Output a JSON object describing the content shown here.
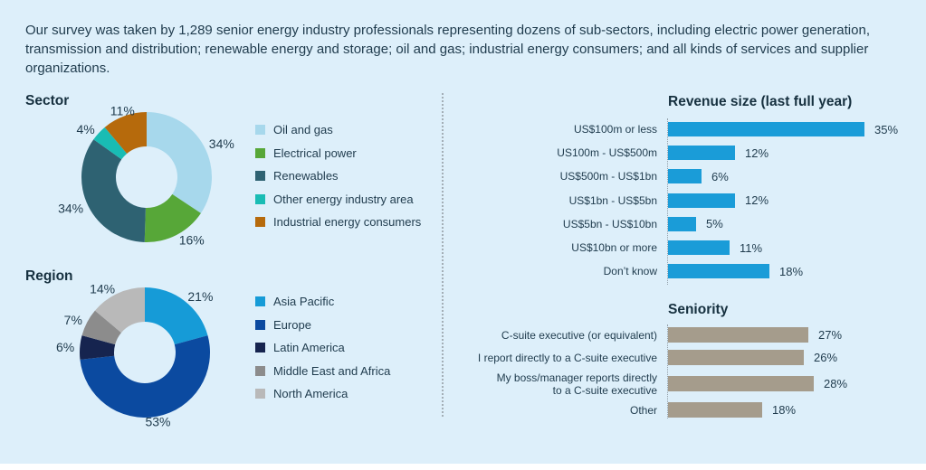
{
  "intro": "Our survey was taken by 1,289 senior energy industry professionals representing dozens of sub-sectors, including electric power generation, transmission and distribution; renewable energy and storage; oil and gas; industrial energy consumers; and all kinds of services and supplier organizations.",
  "colors": {
    "background": "#ddeffa",
    "text": "#1f3b4d",
    "revenue_bar": "#1a9cd8",
    "seniority_bar": "#a59c8c",
    "divider": "#a3aeb6"
  },
  "chart_data": [
    {
      "id": "sector",
      "type": "pie",
      "donut": true,
      "title": "Sector",
      "legend_position": "right",
      "value_suffix": "%",
      "segments": [
        {
          "label": "Oil and gas",
          "value": 34,
          "color": "#a7d8ec"
        },
        {
          "label": "Electrical power",
          "value": 16,
          "color": "#57a738"
        },
        {
          "label": "Renewables",
          "value": 34,
          "color": "#2e6272"
        },
        {
          "label": "Other energy industry area",
          "value": 4,
          "color": "#19bcb4"
        },
        {
          "label": "Industrial energy consumers",
          "value": 11,
          "color": "#b66a0c"
        }
      ]
    },
    {
      "id": "region",
      "type": "pie",
      "donut": true,
      "title": "Region",
      "legend_position": "right",
      "value_suffix": "%",
      "segments": [
        {
          "label": "Asia Pacific",
          "value": 21,
          "color": "#169bd7"
        },
        {
          "label": "Europe",
          "value": 53,
          "color": "#0b4aa0"
        },
        {
          "label": "Latin America",
          "value": 6,
          "color": "#16244f"
        },
        {
          "label": "Middle East and Africa",
          "value": 7,
          "color": "#8c8c8c"
        },
        {
          "label": "North America",
          "value": 14,
          "color": "#b9b9b9"
        }
      ]
    },
    {
      "id": "revenue",
      "type": "bar",
      "orientation": "horizontal",
      "title": "Revenue size (last full year)",
      "bar_color": "#1a9cd8",
      "value_suffix": "%",
      "xlim": [
        0,
        35
      ],
      "categories": [
        "US$100m or less",
        "US100m - US$500m",
        "US$500m - US$1bn",
        "US$1bn - US$5bn",
        "US$5bn - US$10bn",
        "US$10bn or more",
        "Don’t know"
      ],
      "values": [
        35,
        12,
        6,
        12,
        5,
        11,
        18
      ]
    },
    {
      "id": "seniority",
      "type": "bar",
      "orientation": "horizontal",
      "title": "Seniority",
      "bar_color": "#a59c8c",
      "value_suffix": "%",
      "xlim": [
        0,
        28
      ],
      "categories": [
        "C-suite executive (or equivalent)",
        "I report directly to a C-suite executive",
        "My boss/manager reports directly\nto a C-suite executive",
        "Other"
      ],
      "values": [
        27,
        26,
        28,
        18
      ]
    }
  ]
}
